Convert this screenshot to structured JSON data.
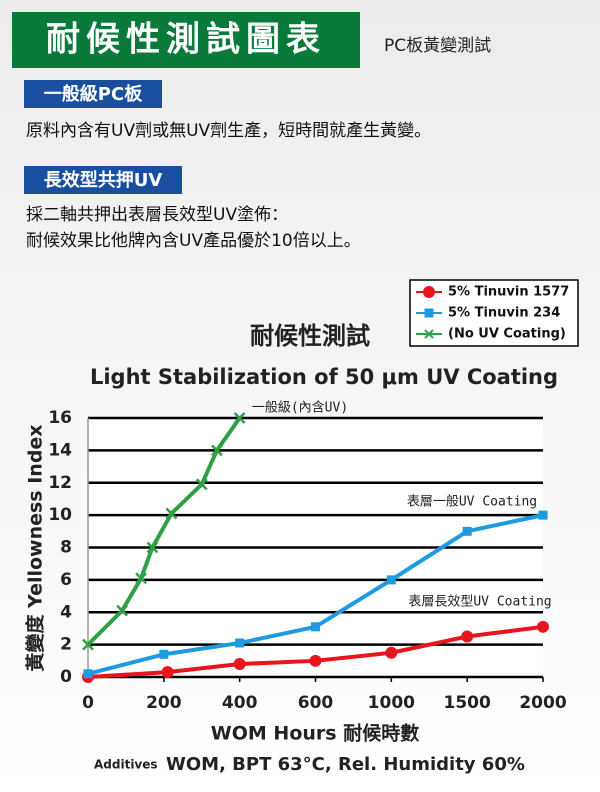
{
  "header": {
    "title": "耐候性測試圖表",
    "subtitle": "PC板黃變測試"
  },
  "sections": [
    {
      "heading": "一般級PC板",
      "lines": [
        "原料內含有UV劑或無UV劑生產，短時間就產生黃變。"
      ]
    },
    {
      "heading": "長效型共押UV",
      "lines": [
        "採二軸共押出表層長效型UV塗佈：",
        "耐候效果比他牌內含UV產品優於10倍以上。"
      ]
    }
  ],
  "chart_data": {
    "type": "line",
    "title": "耐候性測試",
    "subtitle": "Light Stabilization of 50 μm  UV Coating",
    "x_label": "WOM Hours 耐候時數",
    "y_label": "黃變度 Yellowness Index",
    "note_prefix": "Additives",
    "note": "WOM, BPT 63°C, Rel. Humidity 60%",
    "annotations": [
      "一般級(內含UV)",
      "表層一般UV Coating",
      "表層長效型UV Coating"
    ],
    "series": [
      {
        "name": "5% Tinuvin 1577",
        "color": "#e8141e",
        "marker": "circle",
        "x": [
          0,
          210,
          400,
          600,
          1000,
          1500,
          2000
        ],
        "values": [
          0,
          0.3,
          0.8,
          1.0,
          1.5,
          2.5,
          3.1
        ]
      },
      {
        "name": "5% Tinuvin 234",
        "color": "#1e9be0",
        "marker": "square",
        "x": [
          0,
          200,
          400,
          600,
          1000,
          1500,
          2000
        ],
        "values": [
          0.2,
          1.4,
          2.1,
          3.1,
          6.0,
          9.0,
          10.0
        ]
      },
      {
        "name": "(No UV Coating)",
        "color": "#2ea043",
        "marker": "x",
        "x": [
          0,
          90,
          140,
          170,
          220,
          300,
          340,
          400
        ],
        "values": [
          2,
          4.1,
          6.1,
          8.0,
          10.1,
          11.9,
          14.0,
          16.0
        ]
      }
    ],
    "xlim": [
      0,
      2000
    ],
    "xticks": [
      0,
      200,
      400,
      600,
      1000,
      1500,
      2000
    ],
    "ylim": [
      0,
      16
    ],
    "yticks": [
      0,
      2,
      4,
      6,
      8,
      10,
      12,
      14,
      16
    ],
    "grid": true,
    "legend": "top-right"
  }
}
